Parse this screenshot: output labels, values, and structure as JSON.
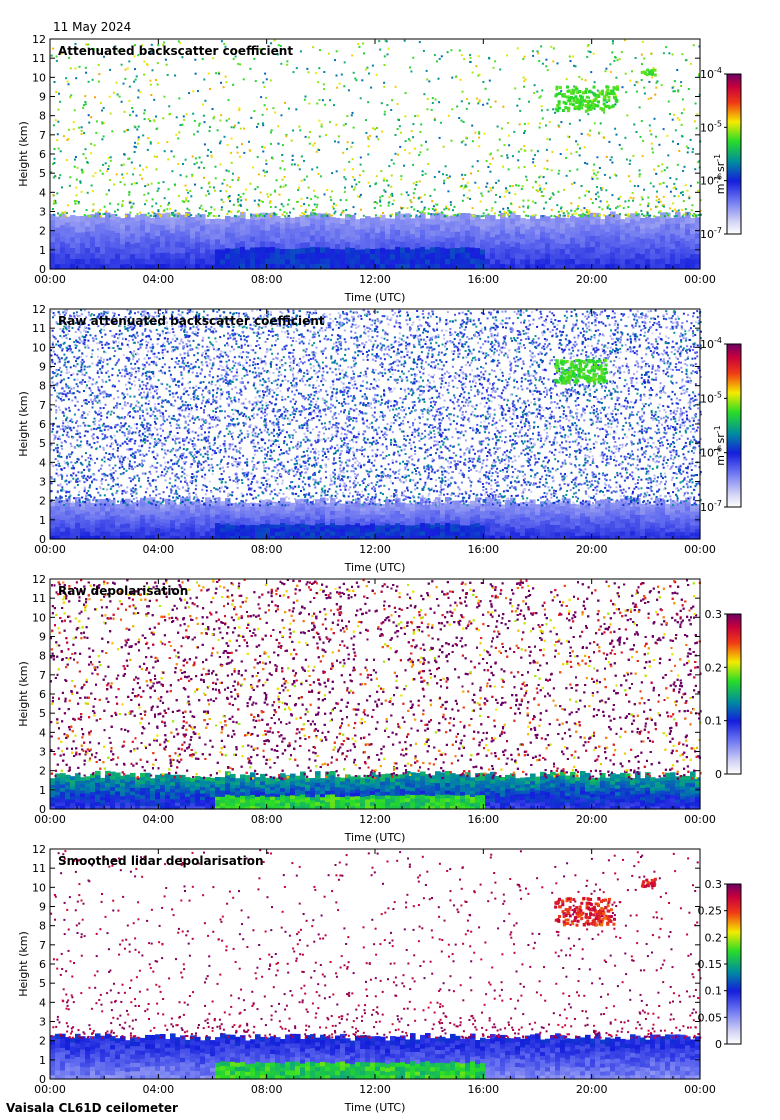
{
  "header": {
    "date": "11 May 2024"
  },
  "footer": {
    "instrument": "Vaisala CL61D ceilometer"
  },
  "chart_data": [
    {
      "type": "heatmap",
      "title": "Attenuated backscatter coefficient",
      "xlabel": "Time (UTC)",
      "ylabel": "Height (km)",
      "xticks": [
        "00:00",
        "04:00",
        "08:00",
        "12:00",
        "16:00",
        "20:00",
        "00:00"
      ],
      "yticks": [
        0,
        1,
        2,
        3,
        4,
        5,
        6,
        7,
        8,
        9,
        10,
        11,
        12
      ],
      "xlim_hours": [
        0,
        24
      ],
      "ylim": [
        0,
        12
      ],
      "colorbar": {
        "scale": "log",
        "range": [
          1e-07,
          0.0001
        ],
        "ticks": [
          {
            "b": "10",
            "e": "-7",
            "v": 1e-07
          },
          {
            "b": "10",
            "e": "-6",
            "v": 1e-06
          },
          {
            "b": "10",
            "e": "-5",
            "v": 1e-05
          },
          {
            "b": "10",
            "e": "-4",
            "v": 0.0001
          }
        ],
        "unit_label": {
          "m": "m",
          "e1": "-1",
          "sr": " sr",
          "e2": "-1"
        }
      },
      "features": {
        "boundary_layer_top_km": 2.8,
        "cloud": {
          "t_hours": [
            18.6,
            20.9
          ],
          "h_km": [
            8.3,
            9.6
          ]
        },
        "cloud2": {
          "t_hours": [
            21.8,
            22.3
          ],
          "h_km": [
            10.2,
            10.5
          ]
        },
        "noise": "sparse-aloft"
      }
    },
    {
      "type": "heatmap",
      "title": "Raw attenuated backscatter coefficient",
      "xlabel": "Time (UTC)",
      "ylabel": "Height (km)",
      "xticks": [
        "00:00",
        "04:00",
        "08:00",
        "12:00",
        "16:00",
        "20:00",
        "00:00"
      ],
      "yticks": [
        0,
        1,
        2,
        3,
        4,
        5,
        6,
        7,
        8,
        9,
        10,
        11,
        12
      ],
      "xlim_hours": [
        0,
        24
      ],
      "ylim": [
        0,
        12
      ],
      "colorbar": {
        "scale": "log",
        "range": [
          1e-07,
          0.0001
        ],
        "ticks": [
          {
            "b": "10",
            "e": "-7",
            "v": 1e-07
          },
          {
            "b": "10",
            "e": "-6",
            "v": 1e-06
          },
          {
            "b": "10",
            "e": "-5",
            "v": 1e-05
          },
          {
            "b": "10",
            "e": "-4",
            "v": 0.0001
          }
        ],
        "unit_label": {
          "m": "m",
          "e1": "-1",
          "sr": " sr",
          "e2": "-1"
        }
      },
      "features": {
        "boundary_layer_top_km": 2.0,
        "cloud": {
          "t_hours": [
            18.6,
            20.5
          ],
          "h_km": [
            8.2,
            9.4
          ]
        },
        "noise": "dense-blue"
      }
    },
    {
      "type": "heatmap",
      "title": "Raw depolarisation",
      "xlabel": "Time (UTC)",
      "ylabel": "Height (km)",
      "xticks": [
        "00:00",
        "04:00",
        "08:00",
        "12:00",
        "16:00",
        "20:00",
        "00:00"
      ],
      "yticks": [
        0,
        1,
        2,
        3,
        4,
        5,
        6,
        7,
        8,
        9,
        10,
        11,
        12
      ],
      "xlim_hours": [
        0,
        24
      ],
      "ylim": [
        0,
        12
      ],
      "colorbar": {
        "scale": "linear",
        "range": [
          0,
          0.3
        ],
        "ticks": [
          {
            "t": "0",
            "v": 0
          },
          {
            "t": "0.1",
            "v": 0.1
          },
          {
            "t": "0.2",
            "v": 0.2
          },
          {
            "t": "0.3",
            "v": 0.3
          }
        ]
      },
      "features": {
        "boundary_layer_top_km": 1.8,
        "noise": "dense-purple"
      }
    },
    {
      "type": "heatmap",
      "title": "Smoothed lidar depolarisation",
      "xlabel": "Time (UTC)",
      "ylabel": "Height (km)",
      "xticks": [
        "00:00",
        "04:00",
        "08:00",
        "12:00",
        "16:00",
        "20:00",
        "00:00"
      ],
      "yticks": [
        0,
        1,
        2,
        3,
        4,
        5,
        6,
        7,
        8,
        9,
        10,
        11,
        12
      ],
      "xlim_hours": [
        0,
        24
      ],
      "ylim": [
        0,
        12
      ],
      "colorbar": {
        "scale": "linear",
        "range": [
          0,
          0.3
        ],
        "ticks": [
          {
            "t": "0",
            "v": 0
          },
          {
            "t": "0.05",
            "v": 0.05
          },
          {
            "t": "0.1",
            "v": 0.1
          },
          {
            "t": "0.15",
            "v": 0.15
          },
          {
            "t": "0.2",
            "v": 0.2
          },
          {
            "t": "0.25",
            "v": 0.25
          },
          {
            "t": "0.3",
            "v": 0.3
          }
        ]
      },
      "features": {
        "boundary_layer_top_km": 2.2,
        "cloud": {
          "t_hours": [
            18.6,
            20.8
          ],
          "h_km": [
            8.1,
            9.5
          ]
        },
        "cloud2": {
          "t_hours": [
            21.8,
            22.3
          ],
          "h_km": [
            10.1,
            10.5
          ]
        },
        "noise": "sparse-purple"
      }
    }
  ]
}
